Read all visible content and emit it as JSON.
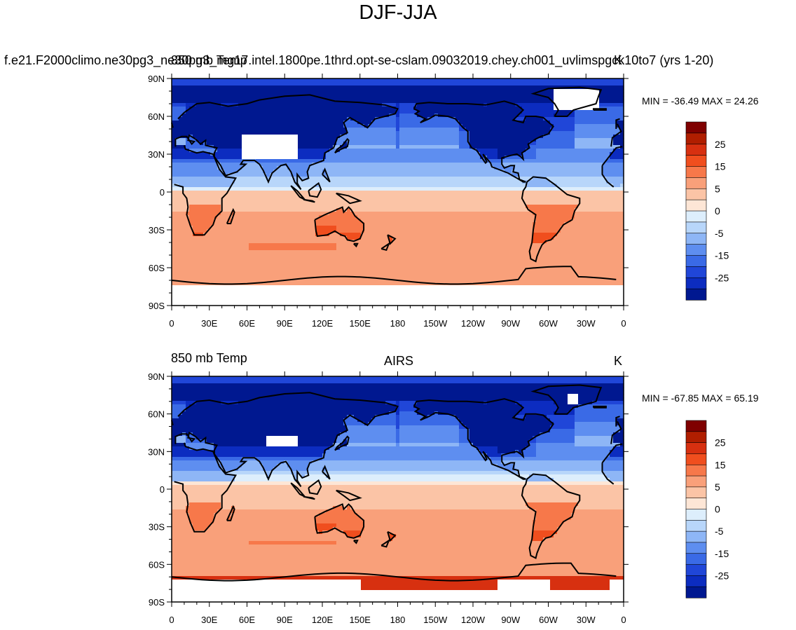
{
  "main_title": "DJF-JJA",
  "panels": [
    {
      "left_string": "f.e21.F2000climo.ne30pg3_ne30pg3_mg17.intel.1800pe.1thrd.opt-se-cslam.09032019.chey.ch001_uvlimspgck10to7 (yrs 1-20)",
      "left_string_overlay": "850 mb Temp",
      "center_string": "",
      "right_string": "K",
      "minmax": "MIN = -36.49 MAX =  24.26"
    },
    {
      "left_string": "850 mb Temp",
      "center_string": "AIRS",
      "right_string": "K",
      "minmax": "MIN = -67.85 MAX =  65.19"
    }
  ],
  "colorbar": {
    "labels": [
      "25",
      "15",
      "5",
      "0",
      "-5",
      "-15",
      "-25"
    ],
    "colors": [
      "#7f0000",
      "#b01e00",
      "#d73010",
      "#f04e1e",
      "#f7784a",
      "#f9a07a",
      "#fbc4a6",
      "#fde6d6",
      "#ddeefc",
      "#b8d6fa",
      "#8eb6f6",
      "#5e8ef0",
      "#3a6ae6",
      "#2046d8",
      "#0c2cc0",
      "#001890"
    ]
  },
  "chart_data": [
    {
      "type": "heatmap",
      "title": "DJF-JJA",
      "subtitle": "850 mb Temp",
      "unit": "K",
      "min": -36.49,
      "max": 24.26,
      "x_ticks": [
        "0",
        "30E",
        "60E",
        "90E",
        "120E",
        "150E",
        "180",
        "150W",
        "120W",
        "90W",
        "60W",
        "30W",
        "0"
      ],
      "y_ticks": [
        "90N",
        "60N",
        "30N",
        "0",
        "30S",
        "60S",
        "90S"
      ],
      "xlim": [
        0,
        360
      ],
      "ylim": [
        -90,
        90
      ]
    },
    {
      "type": "heatmap",
      "title": "AIRS",
      "subtitle": "850 mb Temp",
      "unit": "K",
      "min": -67.85,
      "max": 65.19,
      "x_ticks": [
        "0",
        "30E",
        "60E",
        "90E",
        "120E",
        "150E",
        "180",
        "150W",
        "120W",
        "90W",
        "60W",
        "30W",
        "0"
      ],
      "y_ticks": [
        "90N",
        "60N",
        "30N",
        "0",
        "30S",
        "60S",
        "90S"
      ],
      "xlim": [
        0,
        360
      ],
      "ylim": [
        -90,
        90
      ]
    }
  ]
}
